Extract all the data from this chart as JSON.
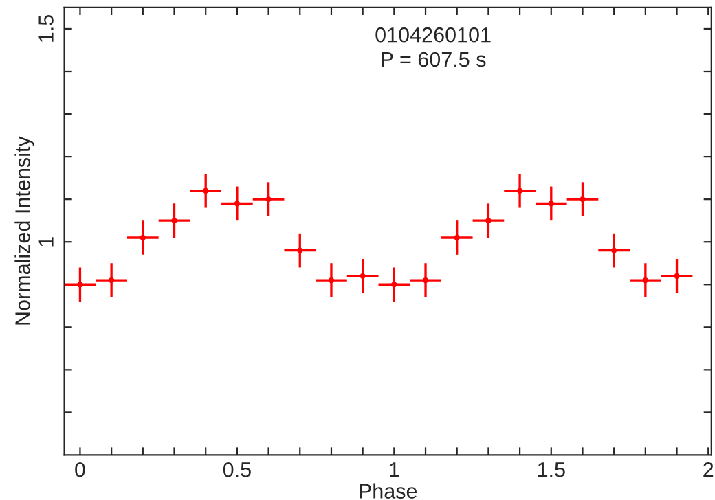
{
  "chart_data": {
    "type": "scatter",
    "xlabel": "Phase",
    "ylabel": "Normalized Intensity",
    "annotations": [
      "0104260101",
      "P = 607.5 s"
    ],
    "x": [
      0,
      0.1,
      0.2,
      0.3,
      0.4,
      0.5,
      0.6,
      0.7,
      0.8,
      0.9,
      1.0,
      1.1,
      1.2,
      1.3,
      1.4,
      1.5,
      1.6,
      1.7,
      1.8,
      1.9
    ],
    "series": [
      {
        "color": "#ff0000",
        "values": [
          0.9,
          0.91,
          1.01,
          1.05,
          1.12,
          1.09,
          1.1,
          0.98,
          0.91,
          0.92,
          0.9,
          0.91,
          1.01,
          1.05,
          1.12,
          1.09,
          1.1,
          0.98,
          0.91,
          0.92
        ],
        "errors": [
          0.04,
          0.04,
          0.04,
          0.04,
          0.04,
          0.04,
          0.04,
          0.04,
          0.04,
          0.04,
          0.04,
          0.04,
          0.04,
          0.04,
          0.04,
          0.04,
          0.04,
          0.04,
          0.04,
          0.04
        ],
        "xerrors": [
          0.05,
          0.05,
          0.05,
          0.05,
          0.05,
          0.05,
          0.05,
          0.05,
          0.05,
          0.05,
          0.05,
          0.05,
          0.05,
          0.05,
          0.05,
          0.05,
          0.05,
          0.05,
          0.05,
          0.05
        ]
      }
    ],
    "grid": false,
    "legend": false,
    "xlim": [
      -0.05,
      2.01
    ],
    "ylim": [
      0.5,
      1.55
    ],
    "xticks": [
      0,
      {
        "value": 0.1,
        "label": null
      },
      {
        "value": 0.2,
        "label": null
      },
      {
        "value": 0.3,
        "label": null
      },
      {
        "value": 0.4,
        "label": null
      },
      0.5,
      {
        "value": 0.6,
        "label": null
      },
      {
        "value": 0.7,
        "label": null
      },
      {
        "value": 0.8,
        "label": null
      },
      {
        "value": 0.9,
        "label": null
      },
      1,
      {
        "value": 1.1,
        "label": null
      },
      {
        "value": 1.2,
        "label": null
      },
      {
        "value": 1.3,
        "label": null
      },
      {
        "value": 1.4,
        "label": null
      },
      1.5,
      {
        "value": 1.6,
        "label": null
      },
      {
        "value": 1.7,
        "label": null
      },
      {
        "value": 1.8,
        "label": null
      },
      {
        "value": 1.9,
        "label": null
      },
      2
    ],
    "yticks": [
      {
        "value": 0.6,
        "label": null
      },
      {
        "value": 0.7,
        "label": null
      },
      {
        "value": 0.8,
        "label": null
      },
      {
        "value": 0.9,
        "label": null
      },
      1,
      {
        "value": 1.1,
        "label": null
      },
      {
        "value": 1.2,
        "label": null
      },
      {
        "value": 1.3,
        "label": null
      },
      {
        "value": 1.4,
        "label": null
      },
      1.5
    ]
  }
}
